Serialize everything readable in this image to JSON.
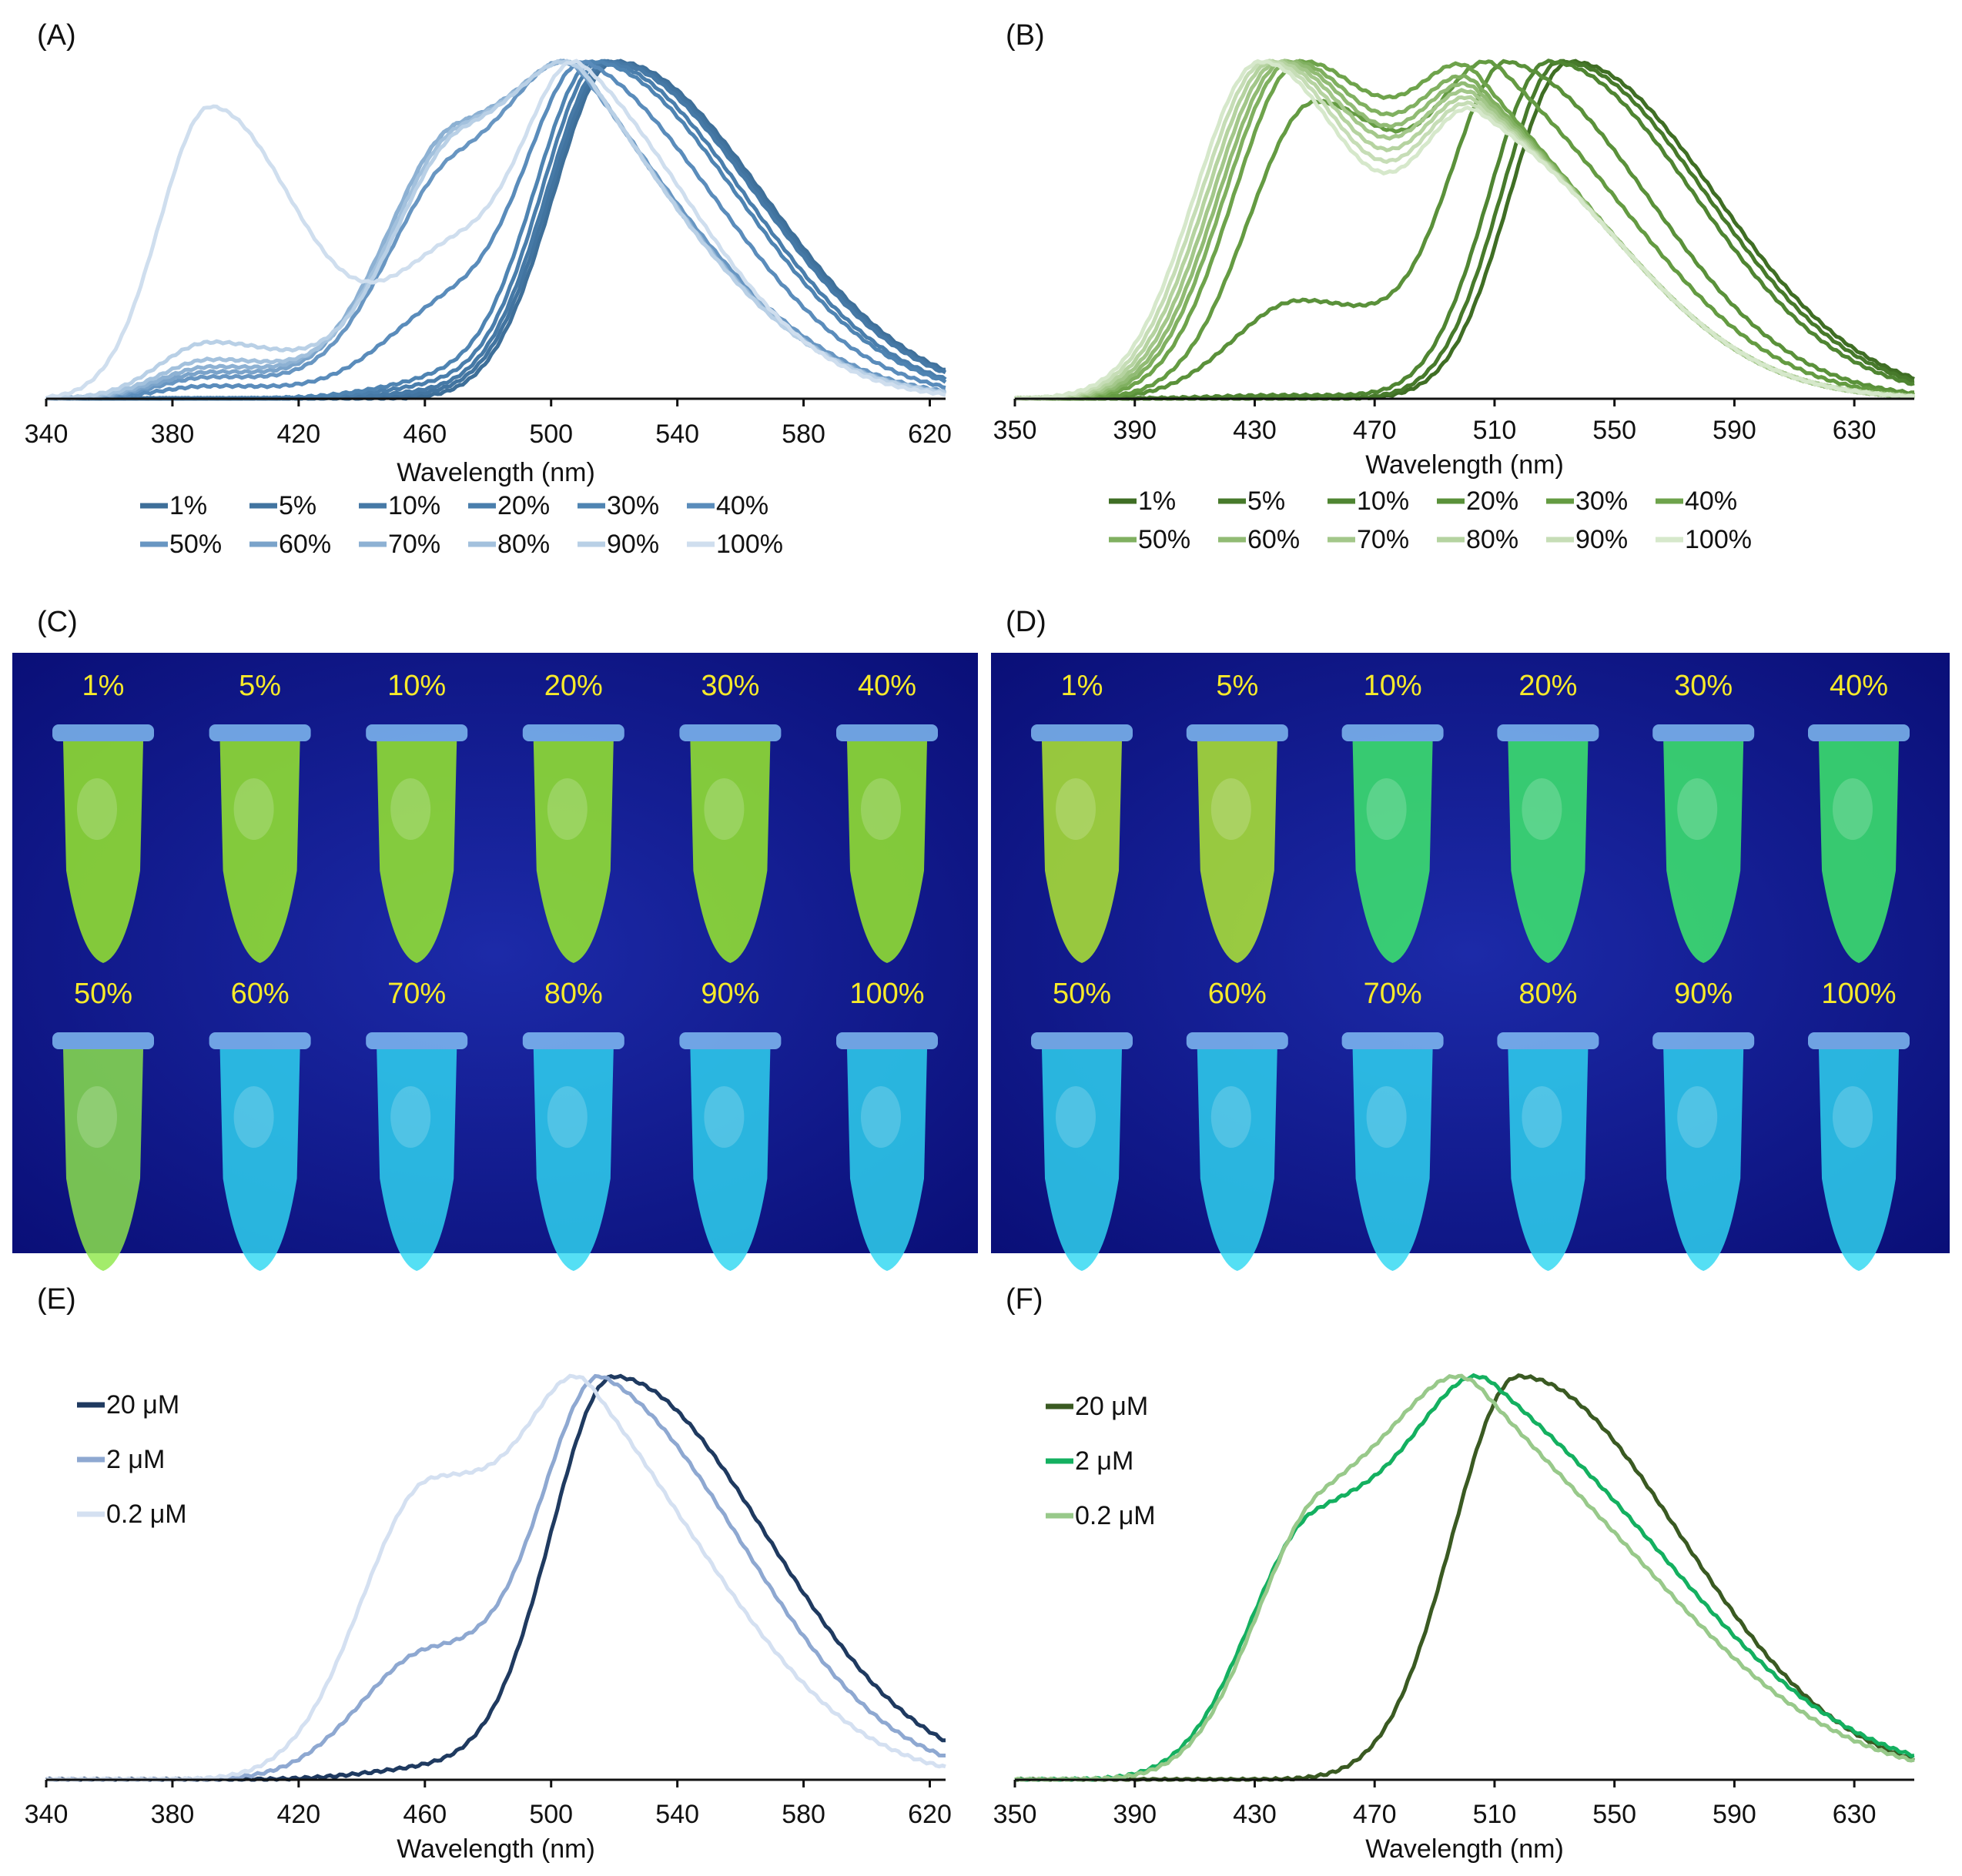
{
  "chart_data": [
    {
      "panel": "(A)",
      "type": "line",
      "xlabel": "Wavelength (nm)",
      "ylabel": "",
      "xlim": [
        340,
        625
      ],
      "ylim": [
        0,
        1
      ],
      "xticks": [
        340,
        380,
        420,
        460,
        500,
        540,
        580,
        620
      ],
      "legend_position": "bottom",
      "series": [
        {
          "name": "1%",
          "color": "#3e6f99",
          "peak": 520,
          "w": 35,
          "bpeak": 470,
          "bamp": 0.0,
          "samp": 0.0
        },
        {
          "name": "5%",
          "color": "#4274a0",
          "peak": 519,
          "w": 35,
          "bpeak": 470,
          "bamp": 0.01,
          "samp": 0.0
        },
        {
          "name": "10%",
          "color": "#4679a6",
          "peak": 518,
          "w": 35,
          "bpeak": 470,
          "bamp": 0.02,
          "samp": 0.0
        },
        {
          "name": "20%",
          "color": "#4a7eac",
          "peak": 516,
          "w": 34,
          "bpeak": 470,
          "bamp": 0.04,
          "samp": 0.0
        },
        {
          "name": "30%",
          "color": "#4f84b2",
          "peak": 514,
          "w": 34,
          "bpeak": 470,
          "bamp": 0.06,
          "samp": 0.0
        },
        {
          "name": "40%",
          "color": "#5a8cbb",
          "peak": 512,
          "w": 33,
          "bpeak": 470,
          "bamp": 0.3,
          "samp": 0.04
        },
        {
          "name": "50%",
          "color": "#6896c2",
          "peak": 510,
          "w": 33,
          "bpeak": 470,
          "bamp": 0.85,
          "samp": 0.08
        },
        {
          "name": "60%",
          "color": "#7aa3ca",
          "peak": 512,
          "w": 32,
          "bpeak": 470,
          "bamp": 1.0,
          "samp": 0.1
        },
        {
          "name": "70%",
          "color": "#8db1d3",
          "peak": 512,
          "w": 32,
          "bpeak": 470,
          "bamp": 1.0,
          "samp": 0.12
        },
        {
          "name": "80%",
          "color": "#a3c1dd",
          "peak": 512,
          "w": 32,
          "bpeak": 471,
          "bamp": 1.0,
          "samp": 0.15
        },
        {
          "name": "90%",
          "color": "#b9d0e6",
          "peak": 512,
          "w": 32,
          "bpeak": 472,
          "bamp": 1.0,
          "samp": 0.22
        },
        {
          "name": "100%",
          "color": "#cfdeee",
          "peak": 510,
          "w": 30,
          "bpeak": 472,
          "bamp": 0.5,
          "samp": 1.0
        }
      ]
    },
    {
      "panel": "(B)",
      "type": "line",
      "xlabel": "Wavelength (nm)",
      "ylabel": "",
      "xlim": [
        350,
        650
      ],
      "ylim": [
        0,
        1
      ],
      "xticks": [
        350,
        390,
        430,
        470,
        510,
        550,
        590,
        630
      ],
      "legend_position": "bottom",
      "series": [
        {
          "name": "1%",
          "color": "#3f6e24",
          "peak": 535,
          "w": 36,
          "bpeak": 440,
          "bamp": 0.0
        },
        {
          "name": "5%",
          "color": "#477a2b",
          "peak": 532,
          "w": 36,
          "bpeak": 440,
          "bamp": 0.0
        },
        {
          "name": "10%",
          "color": "#4f8532",
          "peak": 528,
          "w": 36,
          "bpeak": 440,
          "bamp": 0.01
        },
        {
          "name": "20%",
          "color": "#5a913a",
          "peak": 515,
          "w": 35,
          "bpeak": 445,
          "bamp": 0.28
        },
        {
          "name": "30%",
          "color": "#649b42",
          "peak": 512,
          "w": 35,
          "bpeak": 450,
          "bamp": 0.85
        },
        {
          "name": "40%",
          "color": "#6ea34b",
          "peak": 505,
          "w": 35,
          "bpeak": 445,
          "bamp": 1.0
        },
        {
          "name": "50%",
          "color": "#80b060",
          "peak": 505,
          "w": 35,
          "bpeak": 442,
          "bamp": 1.0
        },
        {
          "name": "60%",
          "color": "#91bb74",
          "peak": 505,
          "w": 35,
          "bpeak": 440,
          "bamp": 1.0
        },
        {
          "name": "70%",
          "color": "#a3c78a",
          "peak": 505,
          "w": 35,
          "bpeak": 438,
          "bamp": 1.0
        },
        {
          "name": "80%",
          "color": "#b5d3a0",
          "peak": 505,
          "w": 35,
          "bpeak": 436,
          "bamp": 1.0
        },
        {
          "name": "90%",
          "color": "#c6ddb6",
          "peak": 505,
          "w": 35,
          "bpeak": 434,
          "bamp": 1.0
        },
        {
          "name": "100%",
          "color": "#d6e8cb",
          "peak": 505,
          "w": 35,
          "bpeak": 432,
          "bamp": 1.0
        }
      ]
    },
    {
      "panel": "(E)",
      "type": "line",
      "xlabel": "Wavelength (nm)",
      "ylabel": "",
      "xlim": [
        340,
        625
      ],
      "ylim": [
        0,
        1
      ],
      "xticks": [
        340,
        380,
        420,
        460,
        500,
        540,
        580,
        620
      ],
      "legend_position": "top-left",
      "series": [
        {
          "name": "20 μM",
          "color": "#1f3a60",
          "peak": 520,
          "w": 36,
          "bpeak": 465,
          "bamp": 0.03
        },
        {
          "name": "2 μM",
          "color": "#8ea8d1",
          "peak": 517,
          "w": 34,
          "bpeak": 462,
          "bamp": 0.32
        },
        {
          "name": "0.2 μM",
          "color": "#d4e0f1",
          "peak": 513,
          "w": 33,
          "bpeak": 462,
          "bamp": 0.8
        }
      ]
    },
    {
      "panel": "(F)",
      "type": "line",
      "xlabel": "Wavelength (nm)",
      "ylabel": "",
      "xlim": [
        350,
        650
      ],
      "ylim": [
        0,
        1
      ],
      "xticks": [
        350,
        390,
        430,
        470,
        510,
        550,
        590,
        630
      ],
      "legend_position": "top-left",
      "series": [
        {
          "name": "20 μM",
          "color": "#3a5a22",
          "peak": 518,
          "w": 40,
          "bpeak": 460,
          "bamp": 0.0
        },
        {
          "name": "2 μM",
          "color": "#14b060",
          "peak": 510,
          "w": 45,
          "bpeak": 450,
          "bamp": 0.62
        },
        {
          "name": "0.2 μM",
          "color": "#98c98a",
          "peak": 506,
          "w": 45,
          "bpeak": 452,
          "bamp": 0.68
        }
      ]
    }
  ],
  "photos": [
    {
      "panel": "(C)",
      "top_row": [
        "1%",
        "5%",
        "10%",
        "20%",
        "30%",
        "40%"
      ],
      "bottom_row": [
        "50%",
        "60%",
        "70%",
        "80%",
        "90%",
        "100%"
      ]
    },
    {
      "panel": "(D)",
      "top_row": [
        "1%",
        "5%",
        "10%",
        "20%",
        "30%",
        "40%"
      ],
      "bottom_row": [
        "50%",
        "60%",
        "70%",
        "80%",
        "90%",
        "100%"
      ]
    }
  ]
}
